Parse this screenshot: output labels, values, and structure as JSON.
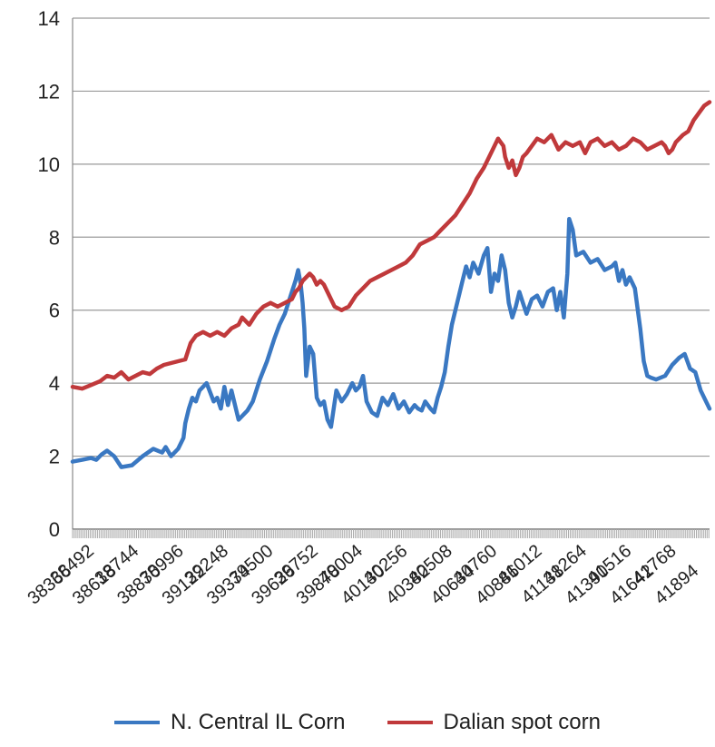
{
  "colors": {
    "series_1": "#3a78c2",
    "series_2": "#c0393b",
    "grid": "#9a9a9a",
    "axis_text": "#222222"
  },
  "legend_position": "bottom",
  "chart_data": {
    "type": "line",
    "title": "",
    "xlabel": "",
    "ylabel": "",
    "ylim": [
      0,
      14
    ],
    "y_ticks": [
      "0",
      "2",
      "4",
      "6",
      "8",
      "10",
      "12",
      "14"
    ],
    "grid": true,
    "x_range": [
      38366,
      41950
    ],
    "x_ticks_upper": [
      "38492",
      "38744",
      "38996",
      "39248",
      "39500",
      "39752",
      "40004",
      "40256",
      "40508",
      "40760",
      "41012",
      "41264",
      "41516",
      "41768"
    ],
    "x_ticks_lower": [
      "38366",
      "38618",
      "38870",
      "39122",
      "39374",
      "39626",
      "39878",
      "40130",
      "40382",
      "40634",
      "40886",
      "41138",
      "41390",
      "41642",
      "41894"
    ],
    "series": [
      {
        "name": "N. Central IL Corn",
        "color": "#3a78c2",
        "x": [
          38366,
          38420,
          38470,
          38500,
          38530,
          38560,
          38600,
          38640,
          38700,
          38760,
          38820,
          38870,
          38890,
          38920,
          38960,
          38990,
          39000,
          39020,
          39040,
          39060,
          39080,
          39100,
          39120,
          39140,
          39160,
          39180,
          39200,
          39220,
          39240,
          39260,
          39280,
          39300,
          39320,
          39350,
          39380,
          39420,
          39460,
          39500,
          39530,
          39560,
          39580,
          39600,
          39620,
          39635,
          39650,
          39660,
          39670,
          39680,
          39700,
          39720,
          39740,
          39760,
          39780,
          39800,
          39820,
          39850,
          39880,
          39910,
          39940,
          39960,
          39980,
          40000,
          40020,
          40050,
          40080,
          40110,
          40140,
          40170,
          40200,
          40230,
          40260,
          40290,
          40310,
          40330,
          40350,
          40380,
          40400,
          40420,
          40440,
          40460,
          40480,
          40500,
          40520,
          40540,
          40560,
          40580,
          40600,
          40620,
          40650,
          40680,
          40700,
          40720,
          40740,
          40760,
          40780,
          40800,
          40820,
          40840,
          40860,
          40880,
          40900,
          40920,
          40950,
          40980,
          41010,
          41040,
          41070,
          41090,
          41110,
          41130,
          41150,
          41160,
          41180,
          41200,
          41240,
          41280,
          41320,
          41360,
          41400,
          41420,
          41440,
          41460,
          41480,
          41500,
          41530,
          41560,
          41580,
          41600,
          41620,
          41650,
          41700,
          41740,
          41780,
          41810,
          41840,
          41870,
          41900,
          41930,
          41950
        ],
        "values": [
          1.85,
          1.9,
          1.95,
          1.9,
          2.05,
          2.15,
          2.0,
          1.7,
          1.75,
          2.0,
          2.2,
          2.1,
          2.25,
          2.0,
          2.2,
          2.5,
          2.9,
          3.3,
          3.6,
          3.5,
          3.8,
          3.9,
          4.0,
          3.75,
          3.5,
          3.6,
          3.3,
          3.9,
          3.4,
          3.8,
          3.4,
          3.0,
          3.1,
          3.25,
          3.5,
          4.1,
          4.6,
          5.2,
          5.6,
          5.9,
          6.2,
          6.5,
          6.8,
          7.1,
          6.7,
          6.2,
          5.5,
          4.2,
          5.0,
          4.8,
          3.6,
          3.4,
          3.5,
          3.0,
          2.8,
          3.8,
          3.5,
          3.7,
          4.0,
          3.8,
          3.9,
          4.2,
          3.5,
          3.2,
          3.1,
          3.6,
          3.4,
          3.7,
          3.3,
          3.5,
          3.2,
          3.4,
          3.3,
          3.25,
          3.5,
          3.3,
          3.2,
          3.6,
          3.9,
          4.3,
          5.0,
          5.6,
          6.0,
          6.4,
          6.8,
          7.2,
          6.9,
          7.3,
          7.0,
          7.5,
          7.7,
          6.5,
          7.0,
          6.8,
          7.5,
          7.1,
          6.2,
          5.8,
          6.1,
          6.5,
          6.2,
          5.9,
          6.3,
          6.4,
          6.1,
          6.5,
          6.6,
          6.0,
          6.5,
          5.8,
          7.0,
          8.5,
          8.2,
          7.5,
          7.6,
          7.3,
          7.4,
          7.1,
          7.2,
          7.3,
          6.8,
          7.1,
          6.7,
          6.9,
          6.6,
          5.5,
          4.6,
          4.2,
          4.15,
          4.1,
          4.2,
          4.5,
          4.7,
          4.8,
          4.4,
          4.3,
          3.8,
          3.5,
          3.3
        ]
      },
      {
        "name": "Dalian spot corn",
        "color": "#c0393b",
        "x": [
          38366,
          38420,
          38470,
          38520,
          38560,
          38600,
          38640,
          38680,
          38720,
          38760,
          38800,
          38840,
          38880,
          38920,
          38960,
          39000,
          39030,
          39060,
          39100,
          39140,
          39180,
          39220,
          39260,
          39300,
          39320,
          39360,
          39400,
          39440,
          39480,
          39520,
          39560,
          39600,
          39620,
          39640,
          39660,
          39680,
          39700,
          39720,
          39740,
          39760,
          39780,
          39800,
          39840,
          39880,
          39920,
          39960,
          40000,
          40040,
          40080,
          40120,
          40160,
          40200,
          40240,
          40280,
          40320,
          40360,
          40400,
          40440,
          40480,
          40520,
          40560,
          40600,
          40640,
          40680,
          40720,
          40760,
          40790,
          40800,
          40820,
          40840,
          40860,
          40880,
          40900,
          40920,
          40950,
          40980,
          41020,
          41060,
          41100,
          41140,
          41180,
          41220,
          41250,
          41280,
          41320,
          41360,
          41400,
          41440,
          41480,
          41520,
          41560,
          41600,
          41640,
          41680,
          41700,
          41720,
          41740,
          41760,
          41780,
          41800,
          41830,
          41860,
          41890,
          41920,
          41950
        ],
        "values": [
          3.9,
          3.85,
          3.95,
          4.05,
          4.2,
          4.15,
          4.3,
          4.1,
          4.2,
          4.3,
          4.25,
          4.4,
          4.5,
          4.55,
          4.6,
          4.65,
          5.1,
          5.3,
          5.4,
          5.3,
          5.4,
          5.3,
          5.5,
          5.6,
          5.8,
          5.6,
          5.9,
          6.1,
          6.2,
          6.1,
          6.2,
          6.3,
          6.5,
          6.6,
          6.8,
          6.9,
          7.0,
          6.9,
          6.7,
          6.8,
          6.7,
          6.5,
          6.1,
          6.0,
          6.1,
          6.4,
          6.6,
          6.8,
          6.9,
          7.0,
          7.1,
          7.2,
          7.3,
          7.5,
          7.8,
          7.9,
          8.0,
          8.2,
          8.4,
          8.6,
          8.9,
          9.2,
          9.6,
          9.9,
          10.3,
          10.7,
          10.5,
          10.2,
          9.9,
          10.1,
          9.7,
          9.9,
          10.2,
          10.3,
          10.5,
          10.7,
          10.6,
          10.8,
          10.4,
          10.6,
          10.5,
          10.6,
          10.3,
          10.6,
          10.7,
          10.5,
          10.6,
          10.4,
          10.5,
          10.7,
          10.6,
          10.4,
          10.5,
          10.6,
          10.5,
          10.3,
          10.4,
          10.6,
          10.7,
          10.8,
          10.9,
          11.2,
          11.4,
          11.6,
          11.7
        ]
      }
    ]
  }
}
